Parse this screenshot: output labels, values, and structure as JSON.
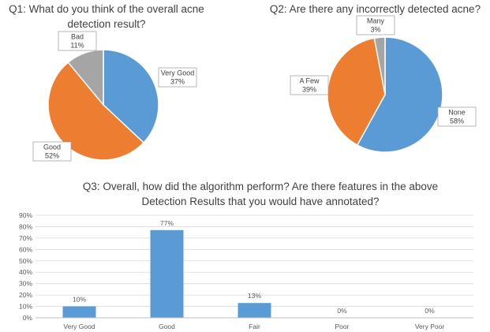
{
  "chart_data": [
    {
      "type": "pie",
      "title": "Q1: What do you think of the overall acne detection result?",
      "categories": [
        "Very Good",
        "Good",
        "Bad"
      ],
      "values": [
        37,
        52,
        11
      ],
      "value_labels": [
        "37%",
        "52%",
        "11%"
      ],
      "colors": [
        "#5b9bd5",
        "#ed7d31",
        "#a5a5a5"
      ]
    },
    {
      "type": "pie",
      "title": "Q2: Are there any incorrectly detected acne?",
      "categories": [
        "None",
        "A Few",
        "Many"
      ],
      "values": [
        58,
        39,
        3
      ],
      "value_labels": [
        "58%",
        "39%",
        "3%"
      ],
      "colors": [
        "#5b9bd5",
        "#ed7d31",
        "#a5a5a5"
      ]
    },
    {
      "type": "bar",
      "title": "Q3: Overall, how did the algorithm perform?  Are there features in the above Detection Results that you would have annotated?",
      "categories": [
        "Very Good",
        "Good",
        "Fair",
        "Poor",
        "Very Poor"
      ],
      "values": [
        10,
        77,
        13,
        0,
        0
      ],
      "value_labels": [
        "10%",
        "77%",
        "13%",
        "0%",
        "0%"
      ],
      "color": "#5b9bd5",
      "ylim": [
        0,
        90
      ],
      "yticks": [
        {
          "value": 0,
          "label": "0%"
        },
        {
          "value": 10,
          "label": "10%"
        },
        {
          "value": 20,
          "label": "20%"
        },
        {
          "value": 30,
          "label": "30%"
        },
        {
          "value": 40,
          "label": "40%"
        },
        {
          "value": 50,
          "label": "50%"
        },
        {
          "value": 60,
          "label": "60%"
        },
        {
          "value": 70,
          "label": "70%"
        },
        {
          "value": 80,
          "label": "80%"
        },
        {
          "value": 90,
          "label": "90%"
        }
      ],
      "grid": true
    }
  ]
}
